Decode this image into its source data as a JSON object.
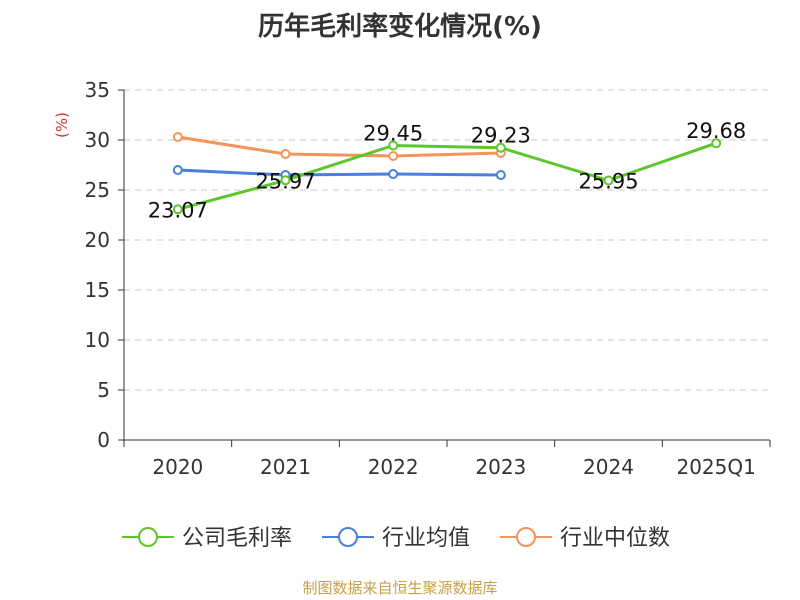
{
  "chart_data": {
    "type": "line",
    "title": "历年毛利率变化情况(%)",
    "ylabel": "(%)",
    "categories": [
      "2020",
      "2021",
      "2022",
      "2023",
      "2024",
      "2025Q1"
    ],
    "ylim": [
      0,
      35
    ],
    "yticks": [
      0,
      5,
      10,
      15,
      20,
      25,
      30,
      35
    ],
    "grid": true,
    "legend_position": "bottom",
    "series": [
      {
        "name": "公司毛利率",
        "color": "#5ec52c",
        "values": [
          23.07,
          25.97,
          29.45,
          29.23,
          25.95,
          29.68
        ],
        "labels": [
          "23.07",
          "25.97",
          "29.45",
          "29.23",
          "25.95",
          "29.68"
        ]
      },
      {
        "name": "行业均值",
        "color": "#4a7fdc",
        "values": [
          27.0,
          26.5,
          26.6,
          26.5,
          null,
          null
        ]
      },
      {
        "name": "行业中位数",
        "color": "#f4935a",
        "values": [
          30.3,
          28.6,
          28.4,
          28.7,
          null,
          null
        ]
      }
    ]
  },
  "footer": {
    "source": "制图数据来自恒生聚源数据库"
  }
}
